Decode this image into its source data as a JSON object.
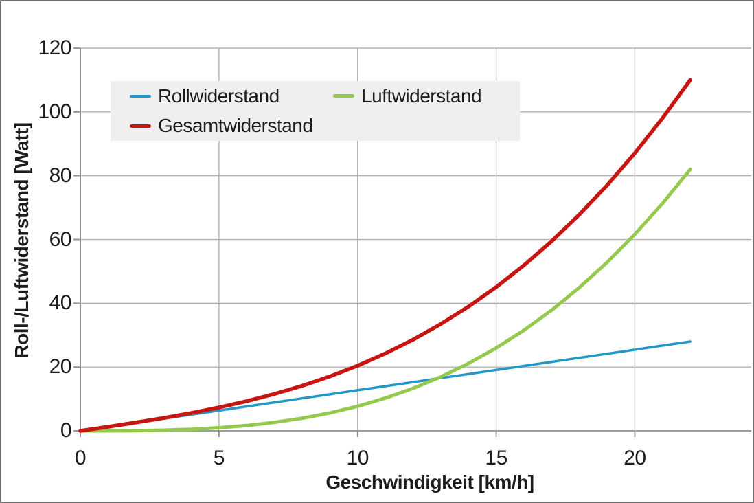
{
  "chart_data": {
    "type": "line",
    "title": "",
    "xlabel": "Geschwindigkeit [km/h]",
    "ylabel": "Roll-/Luftwiderstand [Watt]",
    "xlim": [
      0,
      24.2
    ],
    "ylim": [
      0,
      120
    ],
    "xticks": [
      0,
      5,
      10,
      15,
      20
    ],
    "yticks": [
      0,
      20,
      40,
      60,
      80,
      100,
      120
    ],
    "grid": true,
    "legend_position": "inside-top-left",
    "x": [
      0,
      1,
      2,
      3,
      4,
      5,
      6,
      7,
      8,
      9,
      10,
      11,
      12,
      13,
      14,
      15,
      16,
      17,
      18,
      19,
      20,
      21,
      22
    ],
    "series": [
      {
        "name": "Rollwiderstand",
        "color": "#2398C6",
        "width": 3.5,
        "values": [
          0,
          1.27,
          2.55,
          3.82,
          5.09,
          6.36,
          7.64,
          8.91,
          10.18,
          11.45,
          12.73,
          14.0,
          15.27,
          16.55,
          17.82,
          19.09,
          20.36,
          21.64,
          22.91,
          24.18,
          25.45,
          26.73,
          28.0
        ]
      },
      {
        "name": "Luftwiderstand",
        "color": "#95C94E",
        "width": 5,
        "values": [
          0,
          0.01,
          0.06,
          0.21,
          0.49,
          0.96,
          1.66,
          2.64,
          3.94,
          5.61,
          7.7,
          10.25,
          13.31,
          16.92,
          21.13,
          25.99,
          31.54,
          37.83,
          44.91,
          52.82,
          61.61,
          71.32,
          82.0
        ]
      },
      {
        "name": "Gesamtwiderstand",
        "color": "#C71512",
        "width": 5.5,
        "values": [
          0,
          1.28,
          2.61,
          4.03,
          5.58,
          7.33,
          9.3,
          11.55,
          14.12,
          17.06,
          20.43,
          24.25,
          28.58,
          33.47,
          38.95,
          45.08,
          51.9,
          59.47,
          67.82,
          77.0,
          87.06,
          98.05,
          110.0
        ]
      }
    ]
  },
  "colors": {
    "grid": "#B3B3B3",
    "axis": "#8F8F8F",
    "text": "#1C1C1C",
    "legend_bg": "#EFEFEF",
    "frame": "#6F6F6F",
    "background": "#FFFFFF"
  }
}
